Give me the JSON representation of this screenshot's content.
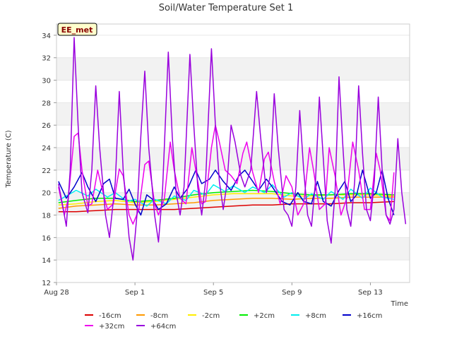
{
  "chart_data": {
    "type": "line",
    "title": "Soil/Water Temperature Set 1",
    "site_label": "EE_met",
    "xlabel": "Time",
    "ylabel": "Temperature (C)",
    "ylim": [
      12,
      35
    ],
    "yticks": [
      12,
      14,
      16,
      18,
      20,
      22,
      24,
      26,
      28,
      30,
      32,
      34
    ],
    "xlim_days_from_aug28": [
      0,
      18
    ],
    "xticks": [
      {
        "label": "Aug 28",
        "day": 0
      },
      {
        "label": "Sep 1",
        "day": 4
      },
      {
        "label": "Sep 5",
        "day": 8
      },
      {
        "label": "Sep 9",
        "day": 12
      },
      {
        "label": "Sep 13",
        "day": 16
      }
    ],
    "grid": "horizontal bands",
    "legend_position": "bottom",
    "series": [
      {
        "name": "-16cm",
        "color": "#dd0000",
        "points": [
          [
            0.1,
            18.3
          ],
          [
            1,
            18.3
          ],
          [
            2,
            18.4
          ],
          [
            3,
            18.5
          ],
          [
            4,
            18.5
          ],
          [
            5,
            18.5
          ],
          [
            6,
            18.5
          ],
          [
            7,
            18.6
          ],
          [
            8,
            18.7
          ],
          [
            9,
            18.8
          ],
          [
            10,
            18.9
          ],
          [
            11,
            18.9
          ],
          [
            12,
            19.0
          ],
          [
            13,
            19.0
          ],
          [
            14,
            19.0
          ],
          [
            15,
            19.1
          ],
          [
            16,
            19.1
          ],
          [
            17.2,
            19.2
          ]
        ]
      },
      {
        "name": "-8cm",
        "color": "#ff9900",
        "points": [
          [
            0.1,
            18.6
          ],
          [
            1,
            18.8
          ],
          [
            2,
            18.9
          ],
          [
            3,
            19.0
          ],
          [
            4,
            18.9
          ],
          [
            5,
            18.9
          ],
          [
            6,
            19.0
          ],
          [
            7,
            19.1
          ],
          [
            8,
            19.3
          ],
          [
            9,
            19.4
          ],
          [
            10,
            19.5
          ],
          [
            11,
            19.5
          ],
          [
            12,
            19.4
          ],
          [
            13,
            19.5
          ],
          [
            14,
            19.5
          ],
          [
            15,
            19.6
          ],
          [
            16,
            19.6
          ],
          [
            17.2,
            19.6
          ]
        ]
      },
      {
        "name": "-2cm",
        "color": "#ffee00",
        "points": [
          [
            0.1,
            18.9
          ],
          [
            1,
            19.0
          ],
          [
            2,
            19.2
          ],
          [
            3,
            19.3
          ],
          [
            4,
            19.1
          ],
          [
            5,
            19.2
          ],
          [
            6,
            19.4
          ],
          [
            7,
            19.6
          ],
          [
            8,
            19.8
          ],
          [
            9,
            19.9
          ],
          [
            10,
            19.9
          ],
          [
            11,
            19.9
          ],
          [
            12,
            19.7
          ],
          [
            13,
            19.7
          ],
          [
            14,
            19.8
          ],
          [
            15,
            19.8
          ],
          [
            16,
            19.8
          ],
          [
            17.2,
            19.7
          ]
        ]
      },
      {
        "name": "+2cm",
        "color": "#00ee00",
        "points": [
          [
            0.1,
            19.1
          ],
          [
            1,
            19.3
          ],
          [
            2,
            19.5
          ],
          [
            3,
            19.5
          ],
          [
            4,
            19.2
          ],
          [
            5,
            19.3
          ],
          [
            6,
            19.5
          ],
          [
            7,
            19.8
          ],
          [
            8,
            20.0
          ],
          [
            9,
            20.1
          ],
          [
            10,
            20.2
          ],
          [
            11,
            20.1
          ],
          [
            12,
            19.9
          ],
          [
            13,
            19.8
          ],
          [
            14,
            19.8
          ],
          [
            15,
            19.9
          ],
          [
            16,
            19.9
          ],
          [
            17.2,
            19.8
          ]
        ]
      },
      {
        "name": "+8cm",
        "color": "#00eeee",
        "points": [
          [
            0.1,
            19.3
          ],
          [
            0.6,
            19.8
          ],
          [
            1,
            20.2
          ],
          [
            1.6,
            19.7
          ],
          [
            2,
            20.3
          ],
          [
            2.6,
            19.6
          ],
          [
            3,
            20.0
          ],
          [
            3.6,
            19.2
          ],
          [
            4,
            19.4
          ],
          [
            4.6,
            18.8
          ],
          [
            5,
            19.4
          ],
          [
            5.6,
            19.0
          ],
          [
            6,
            19.7
          ],
          [
            6.6,
            19.3
          ],
          [
            7,
            20.2
          ],
          [
            7.6,
            19.8
          ],
          [
            8,
            20.7
          ],
          [
            8.6,
            20.1
          ],
          [
            9,
            20.6
          ],
          [
            9.6,
            20.0
          ],
          [
            10,
            20.5
          ],
          [
            10.6,
            20.0
          ],
          [
            11,
            20.7
          ],
          [
            11.6,
            19.6
          ],
          [
            12,
            20.0
          ],
          [
            12.6,
            19.4
          ],
          [
            13,
            19.9
          ],
          [
            13.6,
            19.4
          ],
          [
            14,
            20.1
          ],
          [
            14.6,
            19.4
          ],
          [
            15,
            20.3
          ],
          [
            15.6,
            19.5
          ],
          [
            16,
            20.4
          ],
          [
            16.6,
            19.6
          ],
          [
            17.2,
            19.4
          ]
        ]
      },
      {
        "name": "+16cm",
        "color": "#0000cc",
        "points": [
          [
            0.1,
            21.0
          ],
          [
            0.5,
            19.5
          ],
          [
            0.9,
            20.5
          ],
          [
            1.3,
            21.8
          ],
          [
            1.6,
            20.5
          ],
          [
            2.0,
            19.2
          ],
          [
            2.4,
            20.8
          ],
          [
            2.7,
            21.2
          ],
          [
            3.0,
            19.5
          ],
          [
            3.4,
            19.4
          ],
          [
            3.7,
            20.3
          ],
          [
            4.0,
            19.0
          ],
          [
            4.3,
            18.0
          ],
          [
            4.6,
            19.8
          ],
          [
            4.9,
            19.4
          ],
          [
            5.2,
            18.5
          ],
          [
            5.6,
            19.0
          ],
          [
            6.0,
            20.5
          ],
          [
            6.3,
            19.5
          ],
          [
            6.7,
            20.4
          ],
          [
            7.1,
            22.0
          ],
          [
            7.4,
            20.8
          ],
          [
            7.8,
            21.2
          ],
          [
            8.1,
            22.0
          ],
          [
            8.5,
            21.0
          ],
          [
            8.9,
            20.2
          ],
          [
            9.3,
            21.5
          ],
          [
            9.6,
            22.0
          ],
          [
            10.0,
            21.0
          ],
          [
            10.3,
            20.2
          ],
          [
            10.7,
            21.2
          ],
          [
            11.0,
            20.5
          ],
          [
            11.5,
            19.2
          ],
          [
            11.9,
            18.9
          ],
          [
            12.3,
            20.0
          ],
          [
            12.6,
            19.2
          ],
          [
            13.0,
            19.0
          ],
          [
            13.3,
            21.0
          ],
          [
            13.6,
            19.2
          ],
          [
            14.0,
            18.8
          ],
          [
            14.4,
            20.2
          ],
          [
            14.7,
            21.0
          ],
          [
            15.0,
            19.2
          ],
          [
            15.3,
            19.8
          ],
          [
            15.6,
            22.0
          ],
          [
            16.0,
            19.5
          ],
          [
            16.3,
            20.0
          ],
          [
            16.6,
            22.0
          ],
          [
            16.9,
            19.5
          ],
          [
            17.2,
            18.0
          ]
        ]
      },
      {
        "name": "+32cm",
        "color": "#ee00ee",
        "points": [
          [
            0.1,
            20.5
          ],
          [
            0.4,
            18.0
          ],
          [
            0.6,
            19.5
          ],
          [
            0.9,
            25.0
          ],
          [
            1.1,
            25.3
          ],
          [
            1.3,
            22.0
          ],
          [
            1.6,
            18.8
          ],
          [
            1.8,
            19.0
          ],
          [
            2.1,
            22.0
          ],
          [
            2.3,
            20.5
          ],
          [
            2.6,
            18.5
          ],
          [
            2.9,
            19.0
          ],
          [
            3.2,
            22.1
          ],
          [
            3.4,
            21.5
          ],
          [
            3.7,
            18.0
          ],
          [
            3.9,
            17.2
          ],
          [
            4.2,
            18.5
          ],
          [
            4.5,
            22.5
          ],
          [
            4.7,
            22.8
          ],
          [
            5.0,
            19.0
          ],
          [
            5.2,
            18.0
          ],
          [
            5.5,
            19.5
          ],
          [
            5.8,
            24.5
          ],
          [
            6.0,
            22.0
          ],
          [
            6.3,
            19.5
          ],
          [
            6.6,
            19.0
          ],
          [
            6.9,
            24.0
          ],
          [
            7.1,
            22.0
          ],
          [
            7.4,
            19.0
          ],
          [
            7.6,
            19.2
          ],
          [
            7.9,
            24.0
          ],
          [
            8.1,
            26.0
          ],
          [
            8.3,
            24.5
          ],
          [
            8.6,
            22.0
          ],
          [
            8.9,
            21.5
          ],
          [
            9.2,
            20.8
          ],
          [
            9.5,
            23.5
          ],
          [
            9.7,
            24.5
          ],
          [
            10.0,
            21.8
          ],
          [
            10.3,
            20.0
          ],
          [
            10.6,
            23.0
          ],
          [
            10.8,
            23.6
          ],
          [
            11.1,
            21.0
          ],
          [
            11.4,
            19.0
          ],
          [
            11.7,
            21.5
          ],
          [
            12.0,
            20.5
          ],
          [
            12.3,
            18.0
          ],
          [
            12.6,
            19.0
          ],
          [
            12.9,
            24.0
          ],
          [
            13.1,
            22.0
          ],
          [
            13.4,
            18.5
          ],
          [
            13.7,
            19.0
          ],
          [
            13.9,
            24.0
          ],
          [
            14.2,
            21.5
          ],
          [
            14.5,
            18.0
          ],
          [
            14.8,
            19.5
          ],
          [
            15.1,
            24.5
          ],
          [
            15.4,
            22.0
          ],
          [
            15.7,
            18.5
          ],
          [
            16.0,
            18.5
          ],
          [
            16.3,
            23.5
          ],
          [
            16.5,
            22.0
          ],
          [
            16.8,
            18.0
          ],
          [
            17.0,
            17.5
          ],
          [
            17.2,
            21.8
          ]
        ]
      },
      {
        "name": "+64cm",
        "color": "#9900dd",
        "points": [
          [
            0.1,
            20.8
          ],
          [
            0.3,
            19.0
          ],
          [
            0.5,
            17.0
          ],
          [
            0.7,
            22.0
          ],
          [
            0.9,
            33.8
          ],
          [
            1.1,
            26.0
          ],
          [
            1.3,
            20.0
          ],
          [
            1.6,
            18.2
          ],
          [
            1.8,
            22.0
          ],
          [
            2.0,
            29.5
          ],
          [
            2.2,
            24.0
          ],
          [
            2.5,
            18.0
          ],
          [
            2.7,
            16.0
          ],
          [
            3.0,
            21.0
          ],
          [
            3.2,
            29.0
          ],
          [
            3.4,
            22.0
          ],
          [
            3.7,
            16.0
          ],
          [
            3.9,
            14.0
          ],
          [
            4.1,
            18.0
          ],
          [
            4.3,
            25.0
          ],
          [
            4.5,
            30.8
          ],
          [
            4.7,
            24.0
          ],
          [
            5.0,
            18.0
          ],
          [
            5.2,
            15.6
          ],
          [
            5.4,
            20.0
          ],
          [
            5.7,
            32.5
          ],
          [
            5.9,
            25.0
          ],
          [
            6.1,
            20.0
          ],
          [
            6.3,
            18.0
          ],
          [
            6.5,
            20.5
          ],
          [
            6.8,
            32.3
          ],
          [
            7.0,
            26.0
          ],
          [
            7.2,
            20.5
          ],
          [
            7.4,
            18.0
          ],
          [
            7.6,
            21.0
          ],
          [
            7.9,
            32.8
          ],
          [
            8.1,
            26.0
          ],
          [
            8.3,
            21.0
          ],
          [
            8.5,
            18.5
          ],
          [
            8.7,
            21.0
          ],
          [
            8.9,
            26.0
          ],
          [
            9.1,
            24.5
          ],
          [
            9.4,
            21.5
          ],
          [
            9.6,
            20.5
          ],
          [
            9.9,
            22.0
          ],
          [
            10.2,
            29.0
          ],
          [
            10.4,
            25.0
          ],
          [
            10.7,
            20.0
          ],
          [
            10.9,
            21.5
          ],
          [
            11.1,
            28.8
          ],
          [
            11.3,
            24.0
          ],
          [
            11.6,
            18.5
          ],
          [
            11.8,
            18.0
          ],
          [
            12.0,
            17.0
          ],
          [
            12.2,
            20.5
          ],
          [
            12.4,
            27.3
          ],
          [
            12.6,
            22.0
          ],
          [
            12.8,
            18.0
          ],
          [
            13.0,
            17.0
          ],
          [
            13.2,
            21.0
          ],
          [
            13.4,
            28.5
          ],
          [
            13.6,
            23.0
          ],
          [
            13.8,
            17.5
          ],
          [
            14.0,
            15.5
          ],
          [
            14.2,
            20.0
          ],
          [
            14.4,
            30.3
          ],
          [
            14.6,
            24.0
          ],
          [
            14.8,
            18.5
          ],
          [
            15.0,
            17.0
          ],
          [
            15.2,
            21.0
          ],
          [
            15.4,
            29.5
          ],
          [
            15.6,
            23.5
          ],
          [
            15.8,
            18.5
          ],
          [
            16.0,
            17.5
          ],
          [
            16.2,
            21.0
          ],
          [
            16.4,
            28.5
          ],
          [
            16.6,
            22.0
          ],
          [
            16.8,
            18.0
          ],
          [
            17.0,
            17.2
          ],
          [
            17.2,
            18.5
          ],
          [
            17.4,
            24.8
          ],
          [
            17.6,
            20.0
          ],
          [
            17.8,
            17.2
          ]
        ]
      }
    ]
  }
}
